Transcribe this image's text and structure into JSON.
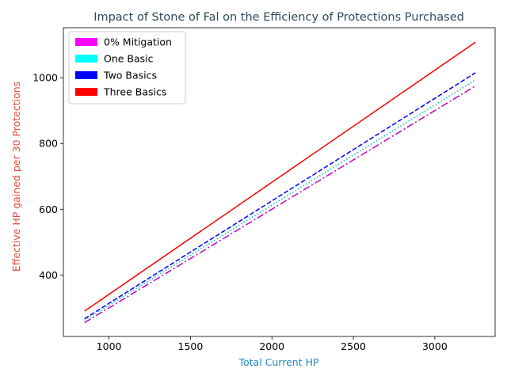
{
  "chart_data": {
    "type": "line",
    "title": "Impact of Stone of Fal on the Efficiency of Protections Purchased",
    "xlabel": "Total Current HP",
    "ylabel": "Effective HP gained per 30 Protections",
    "xlim": [
      720,
      3370
    ],
    "ylim": [
      213,
      1152
    ],
    "xticks": [
      1000,
      1500,
      2000,
      2500,
      3000
    ],
    "yticks": [
      400,
      600,
      800,
      1000
    ],
    "grid": false,
    "legend_position": "top-left",
    "series": [
      {
        "name": "0% Mitigation",
        "legend_color": "#ff00ff",
        "line_color": "#bf00bf",
        "linestyle": "dashdot",
        "x": [
          850,
          3250
        ],
        "y": [
          255,
          975
        ]
      },
      {
        "name": "One Basic",
        "legend_color": "#00ffff",
        "line_color": "#00bfbf",
        "linestyle": "dotted",
        "x": [
          850,
          3250
        ],
        "y": [
          262,
          993
        ]
      },
      {
        "name": "Two Basics",
        "legend_color": "#0000ff",
        "line_color": "#0000ff",
        "linestyle": "dashed",
        "x": [
          850,
          3250
        ],
        "y": [
          267,
          1015
        ]
      },
      {
        "name": "Three Basics",
        "legend_color": "#ff0000",
        "line_color": "#ff0000",
        "linestyle": "solid",
        "x": [
          850,
          3250
        ],
        "y": [
          290,
          1108
        ]
      }
    ],
    "colors": {
      "title": "#2f4858",
      "xlabel": "#1e8bc3",
      "ylabel": "#e74c3c"
    }
  }
}
